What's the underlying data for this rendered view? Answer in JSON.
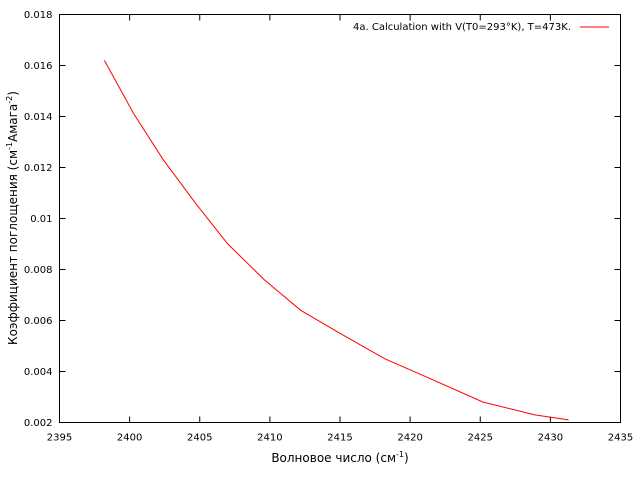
{
  "chart_data": {
    "type": "line",
    "title": "",
    "xlabel": {
      "main": "Волновое число (см",
      "sup": "-1",
      "tail": ")"
    },
    "ylabel": {
      "p1": "Коэффициент поглощения (см",
      "s1": "-1",
      "p2": "Амага",
      "s2": "-2",
      "p3": ")"
    },
    "xlim": [
      2395,
      2435
    ],
    "ylim": [
      0.002,
      0.018
    ],
    "xticks": [
      "2395",
      "2400",
      "2405",
      "2410",
      "2415",
      "2420",
      "2425",
      "2430",
      "2435"
    ],
    "yticks": [
      "0.002",
      "0.004",
      "0.006",
      "0.008",
      "0.01",
      "0.012",
      "0.014",
      "0.016",
      "0.018"
    ],
    "grid": false,
    "legend_position": "top-right",
    "series": [
      {
        "name": "4a. Calculation with V(T0=293°K), T=473K.",
        "color": "#ff0000",
        "x": [
          2398.2,
          2400.3,
          2402.4,
          2404.7,
          2407.0,
          2409.6,
          2412.2,
          2415.0,
          2418.2,
          2421.5,
          2425.2,
          2428.9,
          2431.3
        ],
        "y": [
          0.0162,
          0.0141,
          0.0123,
          0.0106,
          0.009,
          0.0076,
          0.0064,
          0.0055,
          0.0045,
          0.0037,
          0.0028,
          0.0023,
          0.0021
        ]
      }
    ]
  }
}
